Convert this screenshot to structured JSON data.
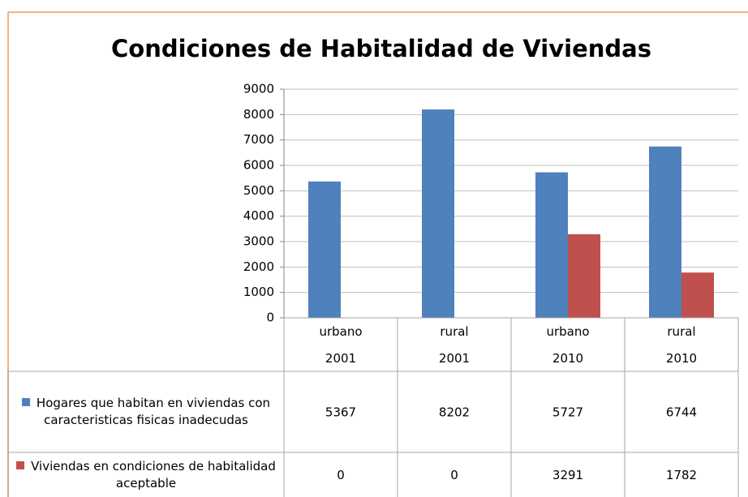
{
  "chart_data": {
    "type": "bar",
    "title": "Condiciones de Habitalidad de Viviendas",
    "categories": [
      [
        "urbano",
        "2001"
      ],
      [
        "rural",
        "2001"
      ],
      [
        "urbano",
        "2010"
      ],
      [
        "rural",
        "2010"
      ]
    ],
    "series": [
      {
        "name": "Hogares que habitan en viviendas con caracteristicas fisicas inadecudas",
        "color": "#4f81bd",
        "values": [
          5367,
          8202,
          5727,
          6744
        ]
      },
      {
        "name": "Viviendas en condiciones de habitalidad aceptable",
        "color": "#c0504d",
        "values": [
          0,
          0,
          3291,
          1782
        ]
      }
    ],
    "ylim": [
      0,
      9000
    ],
    "yticks": [
      0,
      1000,
      2000,
      3000,
      4000,
      5000,
      6000,
      7000,
      8000,
      9000
    ],
    "grid": true
  }
}
